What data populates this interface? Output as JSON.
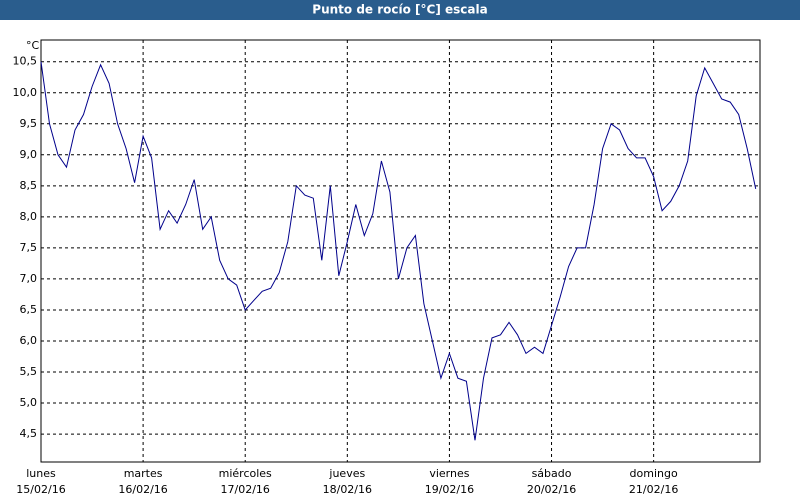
{
  "chart_data": {
    "type": "line",
    "title": "Punto de rocío [°C] escala",
    "y_unit": "°C",
    "x": [
      0,
      2,
      4,
      6,
      8,
      10,
      12,
      14,
      16,
      18,
      20,
      22,
      24,
      26,
      28,
      30,
      32,
      34,
      36,
      38,
      40,
      42,
      44,
      46,
      48,
      50,
      52,
      54,
      56,
      58,
      60,
      62,
      64,
      66,
      68,
      70,
      72,
      74,
      76,
      78,
      80,
      82,
      84,
      86,
      88,
      90,
      92,
      94,
      96,
      98,
      100,
      102,
      104,
      106,
      108,
      110,
      112,
      114,
      116,
      118,
      120,
      122,
      124,
      126,
      128,
      130,
      132,
      134,
      136,
      138,
      140,
      142,
      144,
      146,
      148,
      150,
      152,
      154,
      156,
      158,
      160,
      162,
      164,
      166,
      168
    ],
    "series": [
      {
        "color": "#00008b",
        "values": [
          10.5,
          9.5,
          9.0,
          8.8,
          9.4,
          9.65,
          10.1,
          10.45,
          10.15,
          9.5,
          9.1,
          8.55,
          9.3,
          8.95,
          7.8,
          8.1,
          7.9,
          8.2,
          8.6,
          7.8,
          8.0,
          7.3,
          7.0,
          6.9,
          6.5,
          6.65,
          6.8,
          6.85,
          7.1,
          7.6,
          8.5,
          8.35,
          8.3,
          7.3,
          8.5,
          7.05,
          7.6,
          8.2,
          7.7,
          8.05,
          8.9,
          8.4,
          7.0,
          7.5,
          7.7,
          6.6,
          6.0,
          5.4,
          5.8,
          5.4,
          5.35,
          4.4,
          5.4,
          6.05,
          6.1,
          6.3,
          6.1,
          5.8,
          5.9,
          5.8,
          6.25,
          6.7,
          7.2,
          7.5,
          7.5,
          8.2,
          9.1,
          9.5,
          9.4,
          9.1,
          8.95,
          8.95,
          8.65,
          8.1,
          8.25,
          8.5,
          8.9,
          9.95,
          10.4,
          10.15,
          9.9,
          9.85,
          9.65,
          9.1,
          8.45
        ]
      }
    ],
    "xlim": [
      0,
      169
    ],
    "xticks": [
      {
        "value": 0,
        "label": "lunes"
      },
      {
        "value": 24,
        "label": "martes"
      },
      {
        "value": 48,
        "label": "miércoles"
      },
      {
        "value": 72,
        "label": "jueves"
      },
      {
        "value": 96,
        "label": "viernes"
      },
      {
        "value": 120,
        "label": "sábado"
      },
      {
        "value": 144,
        "label": "domingo"
      }
    ],
    "xtick_dates": [
      "15/02/16",
      "16/02/16",
      "17/02/16",
      "18/02/16",
      "19/02/16",
      "20/02/16",
      "21/02/16"
    ],
    "ylim": [
      4.05,
      10.85
    ],
    "yticks": [
      {
        "value": 4.5,
        "label": "4,5"
      },
      {
        "value": 5,
        "label": "5,0"
      },
      {
        "value": 5.5,
        "label": "5,5"
      },
      {
        "value": 6,
        "label": "6,0"
      },
      {
        "value": 6.5,
        "label": "6,5"
      },
      {
        "value": 7,
        "label": "7,0"
      },
      {
        "value": 7.5,
        "label": "7,5"
      },
      {
        "value": 8,
        "label": "8,0"
      },
      {
        "value": 8.5,
        "label": "8,5"
      },
      {
        "value": 9,
        "label": "9,0"
      },
      {
        "value": 9.5,
        "label": "9,5"
      },
      {
        "value": 10,
        "label": "10,0"
      },
      {
        "value": 10.5,
        "label": "10,5"
      }
    ],
    "grid": true
  }
}
